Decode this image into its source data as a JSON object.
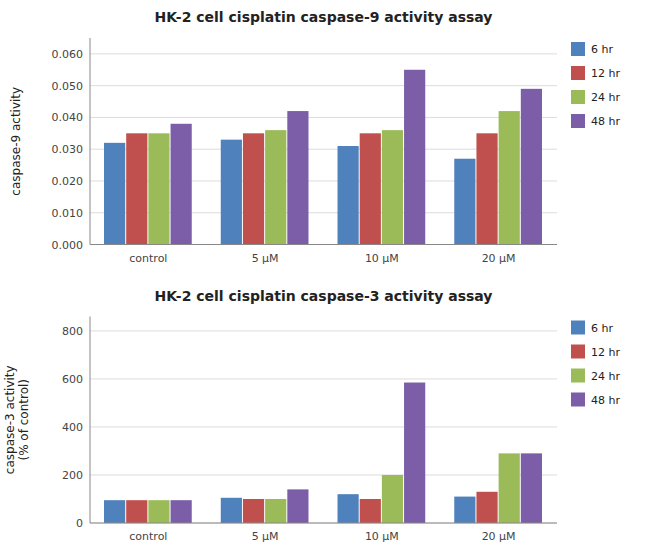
{
  "chart_data": [
    {
      "type": "bar",
      "title": "HK-2 cell cisplatin caspase-9 activity assay",
      "ylabel": "caspase-9 activity",
      "categories": [
        "control",
        "5 μM",
        "10 μM",
        "20 μM"
      ],
      "series": [
        {
          "name": "6 hr",
          "color": "#4f81bd",
          "values": [
            0.032,
            0.033,
            0.031,
            0.027
          ]
        },
        {
          "name": "12 hr",
          "color": "#c0504d",
          "values": [
            0.035,
            0.035,
            0.035,
            0.035
          ]
        },
        {
          "name": "24 hr",
          "color": "#9bbb59",
          "values": [
            0.035,
            0.036,
            0.036,
            0.042
          ]
        },
        {
          "name": "48 hr",
          "color": "#7b5ea7",
          "values": [
            0.038,
            0.042,
            0.055,
            0.049
          ]
        }
      ],
      "ylim": [
        0,
        0.065
      ],
      "yticks": [
        {
          "value": 0.0,
          "label": "0.000"
        },
        {
          "value": 0.01,
          "label": "0.010"
        },
        {
          "value": 0.02,
          "label": "0.020"
        },
        {
          "value": 0.03,
          "label": "0.030"
        },
        {
          "value": 0.04,
          "label": "0.040"
        },
        {
          "value": 0.05,
          "label": "0.050"
        },
        {
          "value": 0.06,
          "label": "0.060"
        }
      ],
      "grid": true,
      "legend": "right"
    },
    {
      "type": "bar",
      "title": "HK-2 cell cisplatin caspase-3 activity assay",
      "ylabel": "caspase-3 activity\n(% of control)",
      "categories": [
        "control",
        "5 μM",
        "10 μM",
        "20 μM"
      ],
      "series": [
        {
          "name": "6 hr",
          "color": "#4f81bd",
          "values": [
            95,
            105,
            120,
            110
          ]
        },
        {
          "name": "12 hr",
          "color": "#c0504d",
          "values": [
            95,
            100,
            100,
            130
          ]
        },
        {
          "name": "24 hr",
          "color": "#9bbb59",
          "values": [
            95,
            100,
            200,
            290
          ]
        },
        {
          "name": "48 hr",
          "color": "#7b5ea7",
          "values": [
            95,
            140,
            585,
            290
          ]
        }
      ],
      "ylim": [
        0,
        860
      ],
      "yticks": [
        0,
        200,
        400,
        600,
        800
      ],
      "grid": true,
      "legend": "right"
    }
  ]
}
